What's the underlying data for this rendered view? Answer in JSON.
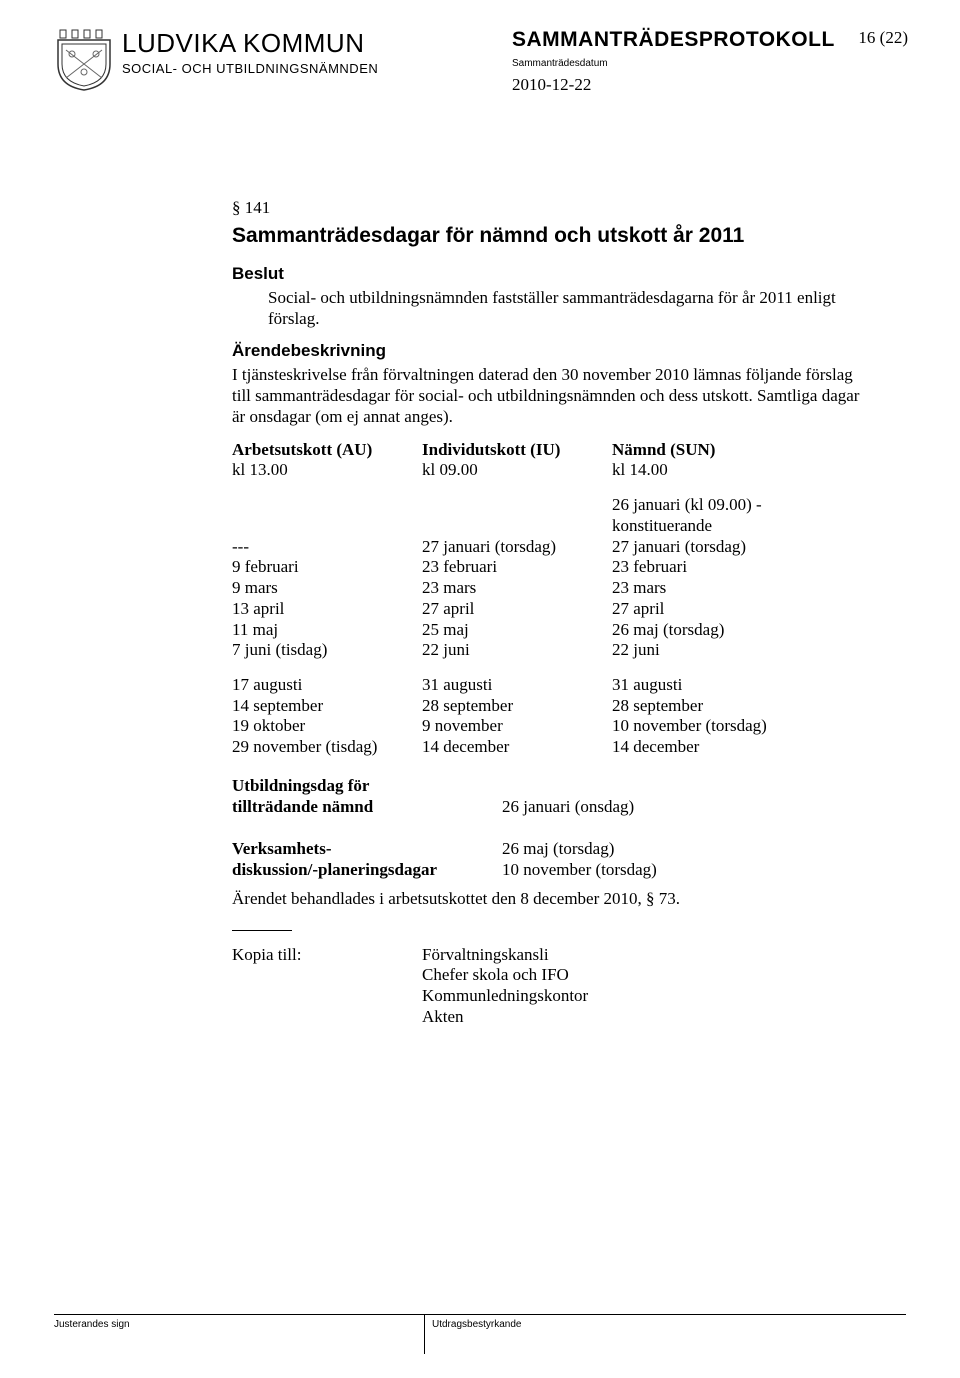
{
  "header": {
    "org_name": "LUDVIKA KOMMUN",
    "org_sub": "SOCIAL- OCH UTBILDNINGSNÄMNDEN",
    "title": "SAMMANTRÄDESPROTOKOLL",
    "date_label": "Sammanträdesdatum",
    "date": "2010-12-22",
    "page": "16 (22)"
  },
  "body": {
    "section_no": "§ 141",
    "h1": "Sammanträdesdagar för nämnd och utskott år 2011",
    "beslut_h": "Beslut",
    "beslut_p": "Social- och utbildningsnämnden fastställer sammanträdesdagarna för år 2011 enligt förslag.",
    "arende_h": "Ärendebeskrivning",
    "arende_p": "I tjänsteskrivelse från förvaltningen daterad den 30 november 2010 lämnas följande förslag till sammanträdesdagar för social- och utbildningsnämnden och dess utskott. Samtliga dagar är onsdagar (om ej annat anges).",
    "schedule": {
      "head": {
        "au": "Arbetsutskott (AU)",
        "iu": "Individutskott (IU)",
        "sun": "Nämnd (SUN)"
      },
      "times": {
        "au": "kl 13.00",
        "iu": "kl 09.00",
        "sun": " kl 14.00"
      },
      "pre_sun": "26 januari (kl 09.00) - konstituerande",
      "rows1": [
        {
          "au": "---",
          "iu": "27 januari (torsdag)",
          "sun": "27 januari (torsdag)"
        },
        {
          "au": "9 februari",
          "iu": "23 februari",
          "sun": "23 februari"
        },
        {
          "au": "9 mars",
          "iu": "23 mars",
          "sun": "23 mars"
        },
        {
          "au": "13 april",
          "iu": "27 april",
          "sun": "27 april"
        },
        {
          "au": "11 maj",
          "iu": "25 maj",
          "sun": "26 maj (torsdag)"
        },
        {
          "au": "7 juni (tisdag)",
          "iu": "22 juni",
          "sun": "22 juni"
        }
      ],
      "rows2": [
        {
          "au": "17 augusti",
          "iu": "31 augusti",
          "sun": "31 augusti"
        },
        {
          "au": "14 september",
          "iu": "28 september",
          "sun": "28 september"
        },
        {
          "au": "19 oktober",
          "iu": "9  november",
          "sun": "10 november (torsdag)"
        },
        {
          "au": "29 november (tisdag)",
          "iu": "14 december",
          "sun": "14 december"
        }
      ]
    },
    "utbild_h1": "Utbildningsdag för",
    "utbild_h2": "tillträdande nämnd",
    "utbild_v": "26 januari (onsdag)",
    "verks_h1": "Verksamhets-",
    "verks_h2": "diskussion/-planeringsdagar",
    "verks_v1": "26 maj (torsdag)",
    "verks_v2": "10 november (torsdag)",
    "handlat": "Ärendet behandlades i arbetsutskottet den 8 december 2010, § 73.",
    "kopia_label": "Kopia till:",
    "kopia": [
      "Förvaltningskansli",
      "Chefer skola och IFO",
      "Kommunledningskontor",
      "Akten"
    ]
  },
  "footer": {
    "left": "Justerandes sign",
    "right": "Utdragsbestyrkande"
  }
}
